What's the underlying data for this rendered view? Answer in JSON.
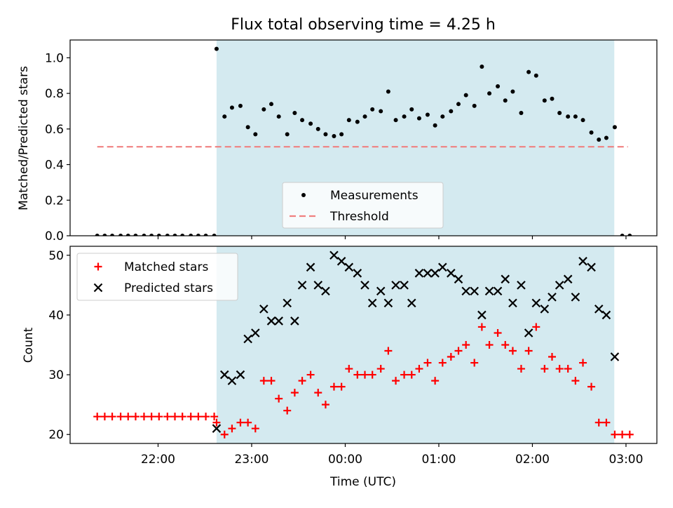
{
  "chart_data": {
    "type": "scatter",
    "title": "Flux total observing time = 4.25 h",
    "xlabel": "Time (UTC)",
    "x_ticks": [
      "22:00",
      "23:00",
      "00:00",
      "01:00",
      "02:00",
      "03:00"
    ],
    "x_tick_hours": [
      22,
      23,
      24,
      25,
      26,
      27
    ],
    "xlim_hours": [
      21.06,
      27.33
    ],
    "observing_window_hours": [
      22.625,
      26.875
    ],
    "colors": {
      "window": "#d4eaf0",
      "measurements": "#000000",
      "threshold": "#f08080",
      "matched": "#ff0000",
      "predicted": "#000000"
    },
    "top": {
      "ylabel": "Matched/Predicted stars",
      "ylim": [
        0,
        1.1
      ],
      "yticks": [
        "0.0",
        "0.2",
        "0.4",
        "0.6",
        "0.8",
        "1.0"
      ],
      "ytick_values": [
        0,
        0.2,
        0.4,
        0.6,
        0.8,
        1.0
      ],
      "legend_position": "lower-center",
      "threshold": {
        "name": "Threshold",
        "value": 0.5,
        "x_start": 21.35,
        "x_end": 27.02
      },
      "measurements": {
        "name": "Measurements",
        "points": [
          [
            21.35,
            0
          ],
          [
            21.43,
            0
          ],
          [
            21.51,
            0
          ],
          [
            21.6,
            0
          ],
          [
            21.68,
            0
          ],
          [
            21.76,
            0
          ],
          [
            21.85,
            0
          ],
          [
            21.93,
            0
          ],
          [
            22.01,
            0
          ],
          [
            22.1,
            0
          ],
          [
            22.18,
            0
          ],
          [
            22.26,
            0
          ],
          [
            22.35,
            0
          ],
          [
            22.43,
            0
          ],
          [
            22.51,
            0
          ],
          [
            22.6,
            0
          ],
          [
            22.625,
            1.05
          ],
          [
            22.71,
            0.67
          ],
          [
            22.79,
            0.72
          ],
          [
            22.88,
            0.73
          ],
          [
            22.96,
            0.61
          ],
          [
            23.04,
            0.57
          ],
          [
            23.13,
            0.71
          ],
          [
            23.21,
            0.74
          ],
          [
            23.29,
            0.67
          ],
          [
            23.38,
            0.57
          ],
          [
            23.46,
            0.69
          ],
          [
            23.54,
            0.65
          ],
          [
            23.63,
            0.63
          ],
          [
            23.71,
            0.6
          ],
          [
            23.79,
            0.57
          ],
          [
            23.88,
            0.56
          ],
          [
            23.96,
            0.57
          ],
          [
            24.04,
            0.65
          ],
          [
            24.13,
            0.64
          ],
          [
            24.21,
            0.67
          ],
          [
            24.29,
            0.71
          ],
          [
            24.38,
            0.7
          ],
          [
            24.46,
            0.81
          ],
          [
            24.54,
            0.65
          ],
          [
            24.63,
            0.67
          ],
          [
            24.71,
            0.71
          ],
          [
            24.79,
            0.66
          ],
          [
            24.88,
            0.68
          ],
          [
            24.96,
            0.62
          ],
          [
            25.04,
            0.67
          ],
          [
            25.13,
            0.7
          ],
          [
            25.21,
            0.74
          ],
          [
            25.29,
            0.79
          ],
          [
            25.38,
            0.73
          ],
          [
            25.46,
            0.95
          ],
          [
            25.54,
            0.8
          ],
          [
            25.63,
            0.84
          ],
          [
            25.71,
            0.76
          ],
          [
            25.79,
            0.81
          ],
          [
            25.88,
            0.69
          ],
          [
            25.96,
            0.92
          ],
          [
            26.04,
            0.9
          ],
          [
            26.13,
            0.76
          ],
          [
            26.21,
            0.77
          ],
          [
            26.29,
            0.69
          ],
          [
            26.38,
            0.67
          ],
          [
            26.46,
            0.67
          ],
          [
            26.54,
            0.65
          ],
          [
            26.63,
            0.58
          ],
          [
            26.71,
            0.54
          ],
          [
            26.79,
            0.55
          ],
          [
            26.88,
            0.61
          ],
          [
            26.96,
            0
          ],
          [
            27.04,
            0
          ]
        ]
      }
    },
    "bottom": {
      "ylabel": "Count",
      "ylim": [
        18.5,
        51.5
      ],
      "yticks": [
        "20",
        "30",
        "40",
        "50"
      ],
      "ytick_values": [
        20,
        30,
        40,
        50
      ],
      "legend_position": "upper-left",
      "series": [
        {
          "name": "Matched stars",
          "marker": "plus",
          "points": [
            [
              21.35,
              23
            ],
            [
              21.43,
              23
            ],
            [
              21.51,
              23
            ],
            [
              21.6,
              23
            ],
            [
              21.68,
              23
            ],
            [
              21.76,
              23
            ],
            [
              21.85,
              23
            ],
            [
              21.93,
              23
            ],
            [
              22.01,
              23
            ],
            [
              22.1,
              23
            ],
            [
              22.18,
              23
            ],
            [
              22.26,
              23
            ],
            [
              22.35,
              23
            ],
            [
              22.43,
              23
            ],
            [
              22.51,
              23
            ],
            [
              22.6,
              23
            ],
            [
              22.625,
              22
            ],
            [
              22.71,
              20
            ],
            [
              22.79,
              21
            ],
            [
              22.88,
              22
            ],
            [
              22.96,
              22
            ],
            [
              23.04,
              21
            ],
            [
              23.13,
              29
            ],
            [
              23.21,
              29
            ],
            [
              23.29,
              26
            ],
            [
              23.38,
              24
            ],
            [
              23.46,
              27
            ],
            [
              23.54,
              29
            ],
            [
              23.63,
              30
            ],
            [
              23.71,
              27
            ],
            [
              23.79,
              25
            ],
            [
              23.88,
              28
            ],
            [
              23.96,
              28
            ],
            [
              24.04,
              31
            ],
            [
              24.13,
              30
            ],
            [
              24.21,
              30
            ],
            [
              24.29,
              30
            ],
            [
              24.38,
              31
            ],
            [
              24.46,
              34
            ],
            [
              24.54,
              29
            ],
            [
              24.63,
              30
            ],
            [
              24.71,
              30
            ],
            [
              24.79,
              31
            ],
            [
              24.88,
              32
            ],
            [
              24.96,
              29
            ],
            [
              25.04,
              32
            ],
            [
              25.13,
              33
            ],
            [
              25.21,
              34
            ],
            [
              25.29,
              35
            ],
            [
              25.38,
              32
            ],
            [
              25.46,
              38
            ],
            [
              25.54,
              35
            ],
            [
              25.63,
              37
            ],
            [
              25.71,
              35
            ],
            [
              25.79,
              34
            ],
            [
              25.88,
              31
            ],
            [
              25.96,
              34
            ],
            [
              26.04,
              38
            ],
            [
              26.13,
              31
            ],
            [
              26.21,
              33
            ],
            [
              26.29,
              31
            ],
            [
              26.38,
              31
            ],
            [
              26.46,
              29
            ],
            [
              26.54,
              32
            ],
            [
              26.63,
              28
            ],
            [
              26.71,
              22
            ],
            [
              26.79,
              22
            ],
            [
              26.88,
              20
            ],
            [
              26.96,
              20
            ],
            [
              27.04,
              20
            ]
          ]
        },
        {
          "name": "Predicted stars",
          "marker": "x",
          "points": [
            [
              22.625,
              21
            ],
            [
              22.71,
              30
            ],
            [
              22.79,
              29
            ],
            [
              22.88,
              30
            ],
            [
              22.96,
              36
            ],
            [
              23.04,
              37
            ],
            [
              23.13,
              41
            ],
            [
              23.21,
              39
            ],
            [
              23.29,
              39
            ],
            [
              23.38,
              42
            ],
            [
              23.46,
              39
            ],
            [
              23.54,
              45
            ],
            [
              23.63,
              48
            ],
            [
              23.71,
              45
            ],
            [
              23.79,
              44
            ],
            [
              23.88,
              50
            ],
            [
              23.96,
              49
            ],
            [
              24.04,
              48
            ],
            [
              24.13,
              47
            ],
            [
              24.21,
              45
            ],
            [
              24.29,
              42
            ],
            [
              24.38,
              44
            ],
            [
              24.46,
              42
            ],
            [
              24.54,
              45
            ],
            [
              24.63,
              45
            ],
            [
              24.71,
              42
            ],
            [
              24.79,
              47
            ],
            [
              24.88,
              47
            ],
            [
              24.96,
              47
            ],
            [
              25.04,
              48
            ],
            [
              25.13,
              47
            ],
            [
              25.21,
              46
            ],
            [
              25.29,
              44
            ],
            [
              25.38,
              44
            ],
            [
              25.46,
              40
            ],
            [
              25.54,
              44
            ],
            [
              25.63,
              44
            ],
            [
              25.71,
              46
            ],
            [
              25.79,
              42
            ],
            [
              25.88,
              45
            ],
            [
              25.96,
              37
            ],
            [
              26.04,
              42
            ],
            [
              26.13,
              41
            ],
            [
              26.21,
              43
            ],
            [
              26.29,
              45
            ],
            [
              26.38,
              46
            ],
            [
              26.46,
              43
            ],
            [
              26.54,
              49
            ],
            [
              26.63,
              48
            ],
            [
              26.71,
              41
            ],
            [
              26.79,
              40
            ],
            [
              26.88,
              33
            ]
          ]
        }
      ]
    }
  }
}
